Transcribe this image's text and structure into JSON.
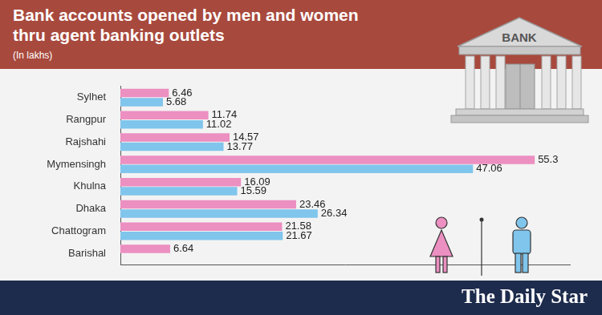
{
  "header": {
    "title": "Bank accounts opened by men and women thru agent banking outlets",
    "subtitle": "(In lakhs)",
    "icon_text": "BANK"
  },
  "chart_data": {
    "type": "bar",
    "orientation": "horizontal",
    "categories": [
      "Sylhet",
      "Rangpur",
      "Rajshahi",
      "Mymensingh",
      "Khulna",
      "Dhaka",
      "Chattogram",
      "Barishal"
    ],
    "series": [
      {
        "color": "#ec8fc1",
        "values": [
          6.46,
          11.74,
          14.57,
          55.3,
          16.09,
          23.46,
          21.58,
          6.64
        ]
      },
      {
        "color": "#80c5ec",
        "values": [
          5.68,
          11.02,
          13.77,
          47.06,
          15.59,
          26.34,
          21.67,
          null
        ]
      }
    ],
    "xlim": [
      0,
      60
    ],
    "xticks": [],
    "grid": false,
    "data_labels": true,
    "tick_labels": "y"
  },
  "footer": {
    "brand": "The Daily Star"
  }
}
